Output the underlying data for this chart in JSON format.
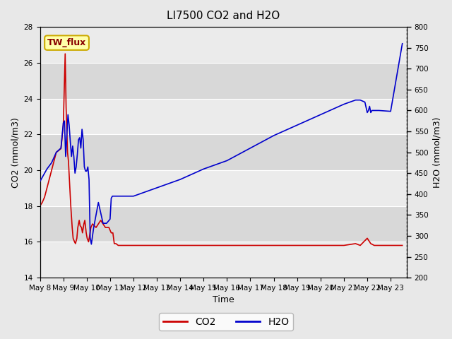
{
  "title": "LI7500 CO2 and H2O",
  "xlabel": "Time",
  "ylabel_left": "CO2 (mmol/m3)",
  "ylabel_right": "H2O (mmol/m3)",
  "annotation": "TW_flux",
  "co2_ylim": [
    14,
    28
  ],
  "h2o_ylim": [
    200,
    800
  ],
  "co2_yticks": [
    14,
    16,
    18,
    20,
    22,
    24,
    26,
    28
  ],
  "h2o_yticks": [
    200,
    250,
    300,
    350,
    400,
    450,
    500,
    550,
    600,
    650,
    700,
    750,
    800
  ],
  "x_tick_labels": [
    "May 8",
    "May 9",
    "May 10",
    "May 11",
    "May 12",
    "May 13",
    "May 14",
    "May 15",
    "May 16",
    "May 17",
    "May 18",
    "May 19",
    "May 20",
    "May 21",
    "May 22",
    "May 23"
  ],
  "co2_color": "#cc0000",
  "h2o_color": "#0000cc",
  "fig_bg_color": "#e8e8e8",
  "plot_bg_color": "#dcdcdc",
  "band_light": "#ebebeb",
  "band_dark": "#d8d8d8",
  "annotation_bg": "#ffffaa",
  "annotation_border": "#ccaa00",
  "annotation_text_color": "#880000",
  "legend_co2": "CO2",
  "legend_h2o": "H2O",
  "grid_color": "#ffffff",
  "co2_x": [
    7.0,
    7.1,
    7.2,
    7.3,
    7.5,
    7.7,
    7.9,
    8.0,
    8.08,
    8.12,
    8.18,
    8.22,
    8.28,
    8.32,
    8.38,
    8.42,
    8.48,
    8.52,
    8.58,
    8.62,
    8.68,
    8.72,
    8.78,
    8.82,
    8.88,
    8.92,
    8.98,
    9.02,
    9.08,
    9.12,
    9.18,
    9.25,
    9.4,
    9.6,
    9.8,
    9.95,
    10.05,
    10.12,
    10.18,
    10.25,
    10.35,
    10.55,
    10.75,
    11.0,
    12.0,
    13.0,
    14.0,
    15.0,
    16.0,
    17.0,
    18.0,
    19.0,
    20.0,
    20.5,
    20.7,
    20.85,
    21.0,
    21.15,
    21.3,
    21.6,
    22.0,
    22.5
  ],
  "co2_y": [
    18.0,
    18.2,
    18.5,
    19.0,
    20.0,
    21.0,
    21.2,
    22.5,
    26.5,
    23.5,
    21.0,
    20.5,
    19.0,
    18.0,
    16.8,
    16.2,
    16.0,
    15.9,
    16.2,
    16.8,
    17.2,
    16.9,
    16.8,
    16.5,
    17.0,
    17.2,
    16.5,
    16.2,
    16.0,
    16.3,
    16.8,
    17.0,
    16.8,
    17.2,
    16.8,
    16.8,
    16.5,
    16.5,
    15.9,
    15.9,
    15.8,
    15.8,
    15.8,
    15.8,
    15.8,
    15.8,
    15.8,
    15.8,
    15.8,
    15.8,
    15.8,
    15.8,
    15.8,
    15.9,
    15.8,
    16.0,
    16.2,
    15.9,
    15.8,
    15.8,
    15.8,
    15.8
  ],
  "h2o_x": [
    7.0,
    7.1,
    7.2,
    7.3,
    7.5,
    7.7,
    7.9,
    8.0,
    8.05,
    8.1,
    8.15,
    8.2,
    8.25,
    8.3,
    8.35,
    8.4,
    8.45,
    8.5,
    8.55,
    8.6,
    8.65,
    8.7,
    8.75,
    8.8,
    8.85,
    8.9,
    8.95,
    9.0,
    9.05,
    9.1,
    9.15,
    9.2,
    9.3,
    9.5,
    9.7,
    9.85,
    10.0,
    10.05,
    10.1,
    10.15,
    10.2,
    10.3,
    10.5,
    11.0,
    12.0,
    13.0,
    14.0,
    15.0,
    16.0,
    17.0,
    18.0,
    19.0,
    20.0,
    20.5,
    20.7,
    20.9,
    21.0,
    21.05,
    21.1,
    21.15,
    21.2,
    21.5,
    22.0,
    22.5
  ],
  "h2o_y": [
    430,
    440,
    450,
    460,
    475,
    500,
    510,
    570,
    575,
    490,
    540,
    590,
    565,
    525,
    490,
    515,
    490,
    450,
    465,
    495,
    530,
    535,
    510,
    555,
    530,
    465,
    455,
    455,
    465,
    435,
    295,
    280,
    320,
    380,
    330,
    330,
    340,
    390,
    395,
    395,
    395,
    395,
    395,
    395,
    415,
    435,
    460,
    480,
    510,
    540,
    565,
    590,
    615,
    625,
    625,
    620,
    595,
    600,
    610,
    595,
    600,
    600,
    598,
    760
  ]
}
